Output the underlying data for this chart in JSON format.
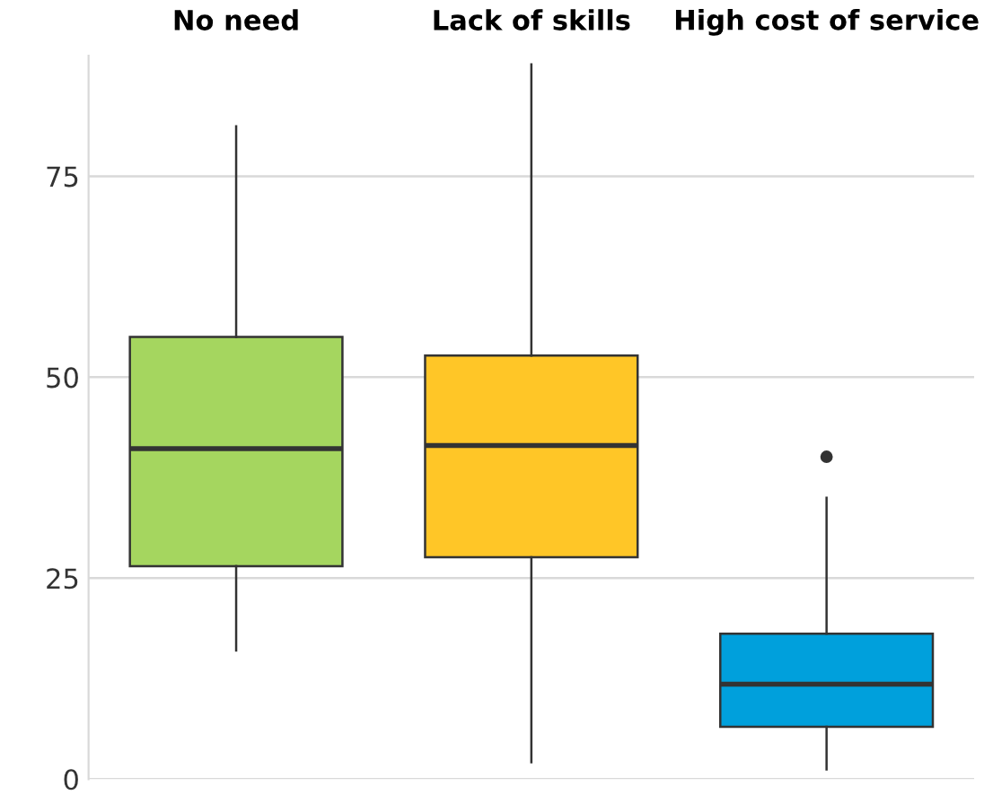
{
  "chart_data": {
    "type": "box",
    "categories": [
      "No need",
      "Lack of skills",
      "High cost of service"
    ],
    "colors": [
      "#a5d65f",
      "#ffc627",
      "#00a0dc"
    ],
    "boxes": [
      {
        "low": 16,
        "q1": 26.5,
        "median": 41.1,
        "q3": 55,
        "high": 81.2
      },
      {
        "low": 2.1,
        "q1": 27.6,
        "median": 41.5,
        "q3": 52.7,
        "high": 88.9
      },
      {
        "low": 1.2,
        "q1": 6.5,
        "median": 11.8,
        "q3": 18.1,
        "high": 35,
        "outliers": [
          40.1
        ]
      }
    ],
    "ylim": [
      0,
      90
    ],
    "yticks": [
      0,
      25,
      50,
      75
    ],
    "grid": "y",
    "legend": false
  }
}
